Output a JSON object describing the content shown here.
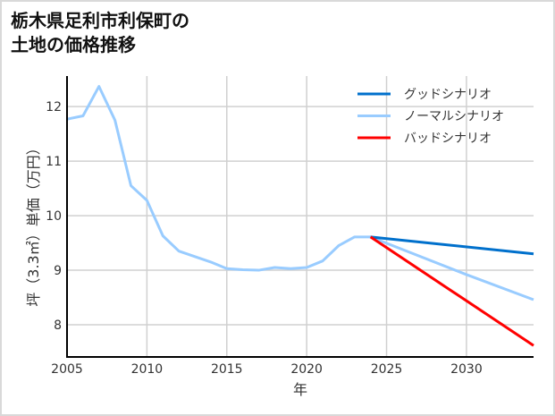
{
  "chart_data": {
    "type": "line",
    "title_lines": [
      "栃木県足利市利保町の",
      "土地の価格推移"
    ],
    "xlabel": "年",
    "ylabel": "坪（3.3㎡）単価（万円）",
    "xlim": [
      2005,
      2034.2
    ],
    "ylim": [
      7.41,
      12.56
    ],
    "xticks": [
      2005,
      2010,
      2015,
      2020,
      2025,
      2030
    ],
    "yticks": [
      8,
      9,
      10,
      11,
      12
    ],
    "grid": true,
    "legend_position": "top-right",
    "series": [
      {
        "name": "グッドシナリオ",
        "color": "#0070cc",
        "x": [
          2024,
          2034.2
        ],
        "y": [
          9.61,
          9.3
        ]
      },
      {
        "name": "ノーマルシナリオ",
        "color": "#99ccff",
        "x": [
          2005,
          2006,
          2007,
          2008,
          2009,
          2010,
          2011,
          2012,
          2013,
          2014,
          2015,
          2016,
          2017,
          2018,
          2019,
          2020,
          2021,
          2022,
          2023,
          2024,
          2030,
          2034.2
        ],
        "y": [
          11.77,
          11.83,
          12.37,
          11.75,
          10.55,
          10.28,
          9.63,
          9.35,
          9.25,
          9.15,
          9.03,
          9.01,
          9.0,
          9.05,
          9.03,
          9.05,
          9.17,
          9.45,
          9.61,
          9.61,
          8.92,
          8.46
        ]
      },
      {
        "name": "バッドシナリオ",
        "color": "#ff0000",
        "x": [
          2024,
          2034.2
        ],
        "y": [
          9.61,
          7.62
        ]
      }
    ]
  }
}
